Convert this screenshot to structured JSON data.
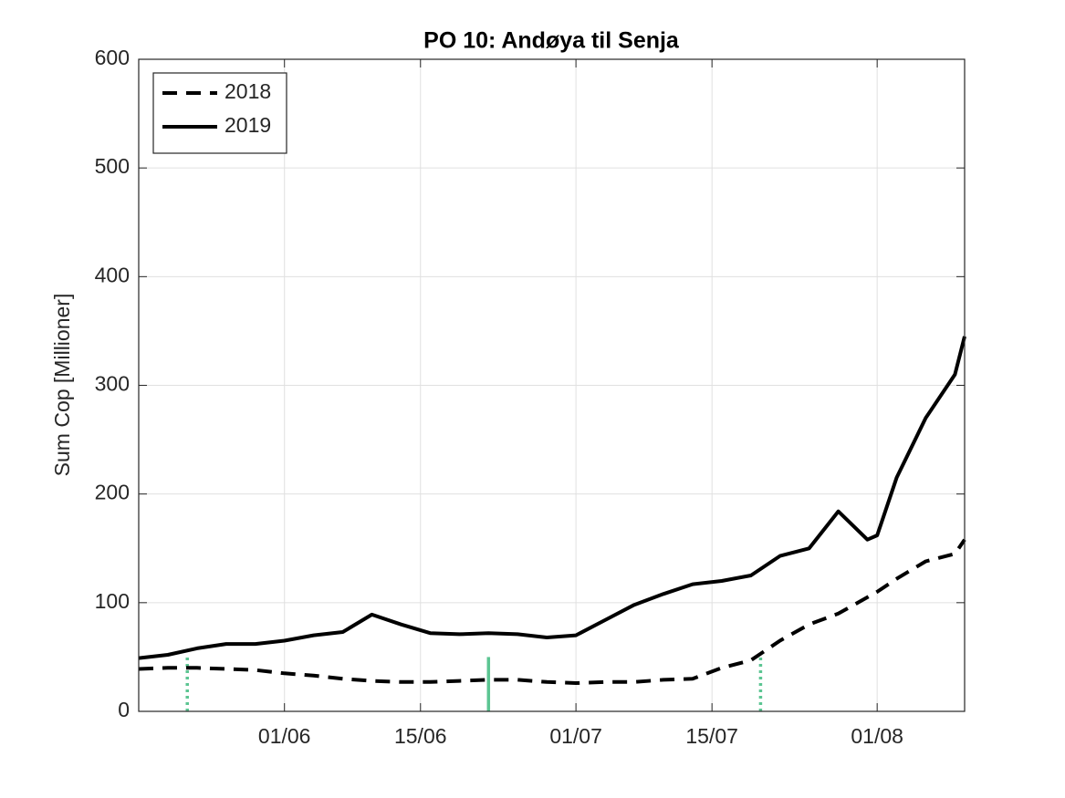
{
  "chart_data": {
    "type": "line",
    "title": "PO 10: Andøya til Senja",
    "ylabel": "Sum Cop [Millioner]",
    "x": [
      "17/05",
      "20/05",
      "23/05",
      "26/05",
      "29/05",
      "01/06",
      "04/06",
      "07/06",
      "10/06",
      "13/06",
      "16/06",
      "19/06",
      "22/06",
      "25/06",
      "28/06",
      "01/07",
      "04/07",
      "07/07",
      "10/07",
      "13/07",
      "16/07",
      "19/07",
      "22/07",
      "25/07",
      "28/07",
      "31/07",
      "01/08",
      "03/08",
      "06/08",
      "09/08",
      "10/08"
    ],
    "series": [
      {
        "name": "2018",
        "color": "#000000",
        "dash": true,
        "values": [
          39,
          40,
          40,
          39,
          38,
          35,
          33,
          30,
          28,
          27,
          27,
          28,
          29,
          29,
          27,
          26,
          27,
          27,
          29,
          30,
          40,
          47,
          65,
          80,
          90,
          105,
          110,
          122,
          138,
          145,
          158
        ]
      },
      {
        "name": "2019",
        "color": "#000000",
        "dash": false,
        "values": [
          49,
          52,
          58,
          62,
          62,
          65,
          70,
          73,
          89,
          80,
          72,
          71,
          72,
          71,
          68,
          70,
          84,
          98,
          108,
          117,
          120,
          125,
          143,
          150,
          184,
          158,
          162,
          215,
          270,
          310,
          345
        ]
      }
    ],
    "markers": {
      "color": "#5cc592",
      "height": 50,
      "x": [
        "22/05",
        "22/06",
        "20/07"
      ],
      "dotted": [
        true,
        false,
        true
      ]
    },
    "xlim": [
      "17/05",
      "10/08"
    ],
    "xticks": [
      "01/06",
      "15/06",
      "01/07",
      "15/07",
      "01/08"
    ],
    "ylim": [
      0,
      600
    ],
    "yticks": [
      0,
      100,
      200,
      300,
      400,
      500,
      600
    ],
    "grid": true,
    "legend": "upper left"
  }
}
